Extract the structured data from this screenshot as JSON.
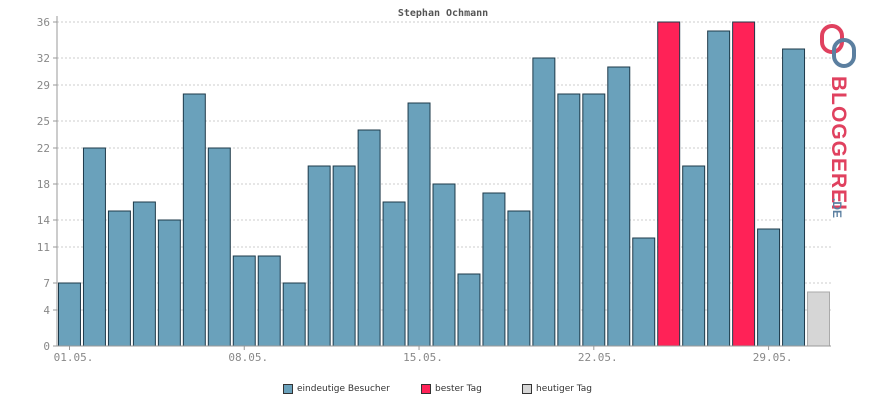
{
  "chart_data": {
    "type": "bar",
    "title": "Stephan Ochmann",
    "xlabel": "",
    "ylabel": "",
    "ylim": [
      0,
      36
    ],
    "y_ticks": [
      0,
      4,
      7,
      11,
      14,
      18,
      22,
      25,
      29,
      32,
      36
    ],
    "x_tick_labels": [
      {
        "day": 1,
        "label": "01.05."
      },
      {
        "day": 8,
        "label": "08.05."
      },
      {
        "day": 15,
        "label": "15.05."
      },
      {
        "day": 22,
        "label": "22.05."
      },
      {
        "day": 29,
        "label": "29.05."
      }
    ],
    "grid": true,
    "categories": [
      "01.05.",
      "02.05.",
      "03.05.",
      "04.05.",
      "05.05.",
      "06.05.",
      "07.05.",
      "08.05.",
      "09.05.",
      "10.05.",
      "11.05.",
      "12.05.",
      "13.05.",
      "14.05.",
      "15.05.",
      "16.05.",
      "17.05.",
      "18.05.",
      "19.05.",
      "20.05.",
      "21.05.",
      "22.05.",
      "23.05.",
      "24.05.",
      "25.05.",
      "26.05.",
      "27.05.",
      "28.05.",
      "29.05.",
      "30.05.",
      "31.05."
    ],
    "values": [
      7,
      22,
      15,
      16,
      14,
      28,
      22,
      10,
      10,
      7,
      20,
      20,
      24,
      16,
      27,
      18,
      8,
      17,
      15,
      32,
      28,
      28,
      31,
      12,
      36,
      20,
      35,
      36,
      13,
      33,
      6
    ],
    "bar_kind": [
      "visitors",
      "visitors",
      "visitors",
      "visitors",
      "visitors",
      "visitors",
      "visitors",
      "visitors",
      "visitors",
      "visitors",
      "visitors",
      "visitors",
      "visitors",
      "visitors",
      "visitors",
      "visitors",
      "visitors",
      "visitors",
      "visitors",
      "visitors",
      "visitors",
      "visitors",
      "visitors",
      "visitors",
      "best",
      "visitors",
      "visitors",
      "best",
      "visitors",
      "visitors",
      "today"
    ],
    "series": [
      {
        "name": "eindeutige Besucher",
        "color": "#6aa1bb"
      },
      {
        "name": "bester Tag",
        "color": "#ff2257"
      },
      {
        "name": "heutiger Tag",
        "color": "#d6d6d6"
      }
    ],
    "legend_position": "bottom"
  },
  "brand": {
    "text_main": "BLOGGEREI",
    "text_suffix": ".DE",
    "logo_icon": "bloggerei-logo-icon"
  },
  "colors": {
    "visitors": "#6aa1bb",
    "best": "#ff2257",
    "today": "#d6d6d6",
    "bar_stroke": "#1e3a4a",
    "axis": "#999999",
    "grid": "#cccccc",
    "tick_text": "#888888",
    "brand_red": "#e0415f",
    "brand_blue": "#5b7fa0"
  }
}
